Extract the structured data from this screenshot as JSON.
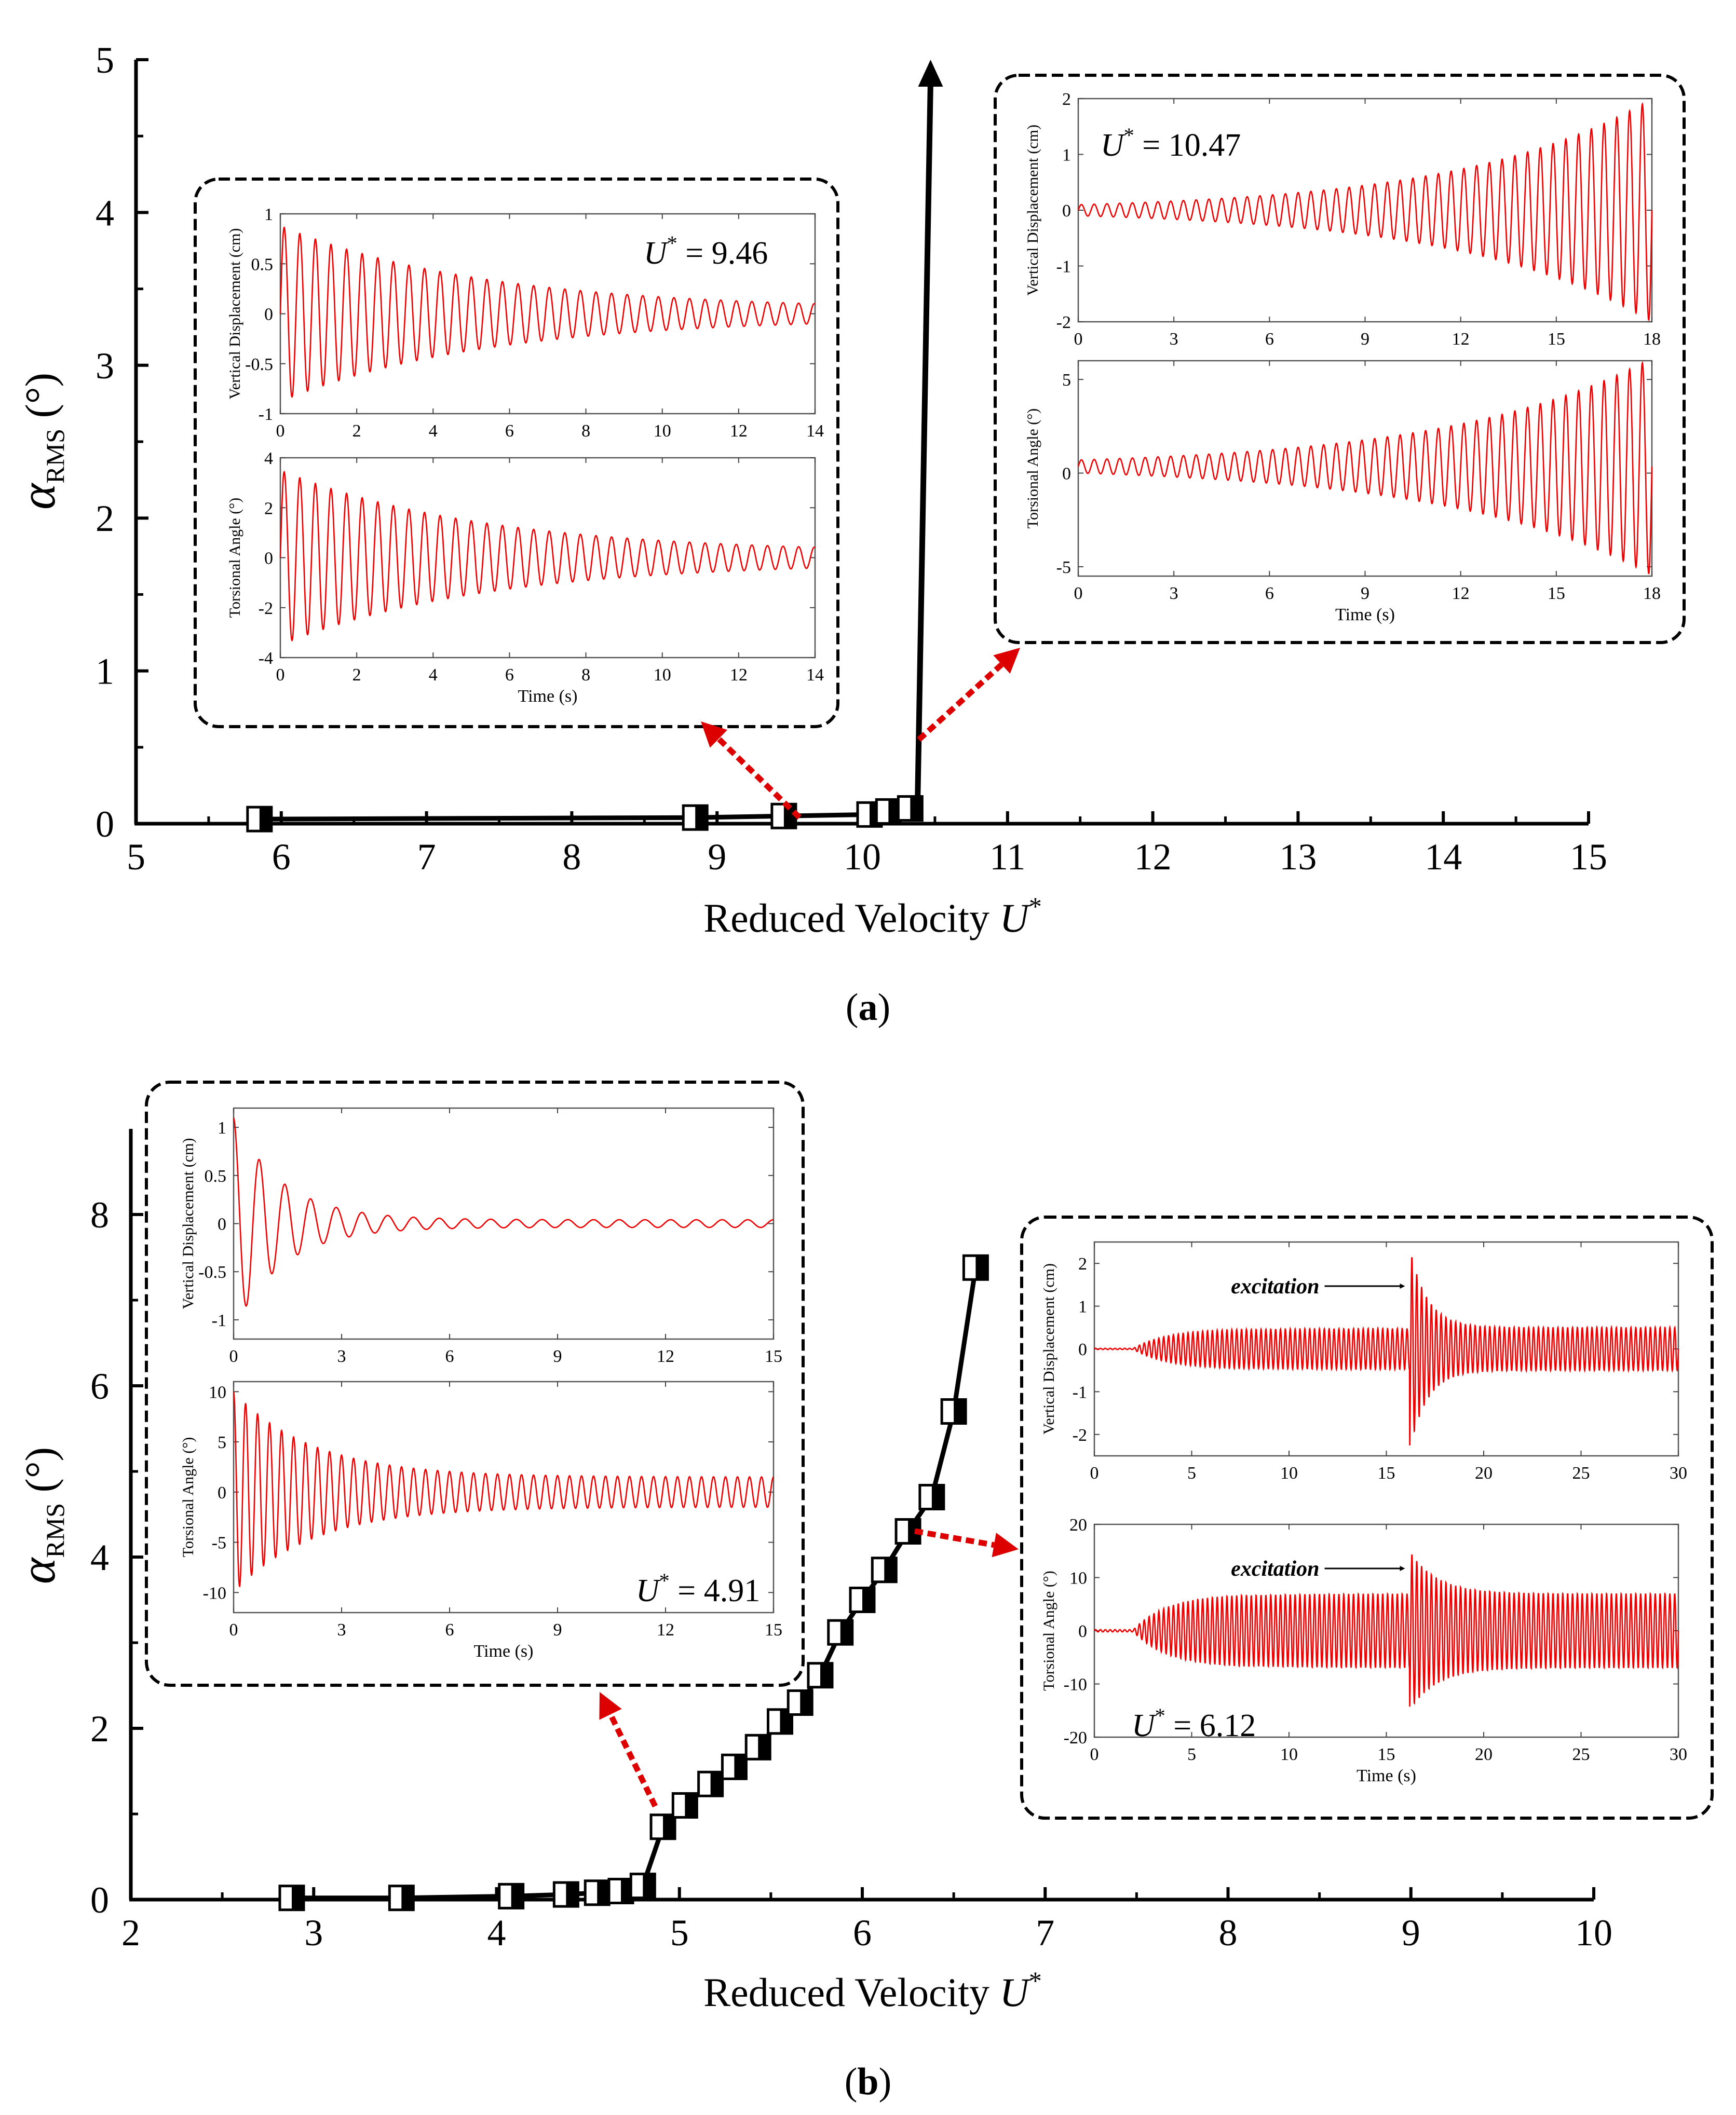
{
  "colors": {
    "axis": "#000000",
    "series": "#000000",
    "signal": "#ee0000",
    "arrow": "#dd0000",
    "box": "#000000"
  },
  "panels": [
    {
      "label": "(a)",
      "ylabel": "αRMS (°)",
      "ylabel_main": "α",
      "ylabel_sub": "RMS",
      "ylabel_unit": "(°)",
      "xlabel": "Reduced Velocity U*",
      "xlabel_main": "Reduced Velocity ",
      "xlabel_var": "U",
      "xlabel_sup": "*",
      "xlim": [
        5,
        15
      ],
      "ylim": [
        0,
        5
      ],
      "xticks": [
        "5",
        "6",
        "7",
        "8",
        "9",
        "10",
        "11",
        "12",
        "13",
        "14",
        "15"
      ],
      "yticks": [
        "0",
        "1",
        "2",
        "3",
        "4",
        "5"
      ],
      "points": [
        {
          "x": 5.85,
          "y": 0.03
        },
        {
          "x": 8.85,
          "y": 0.04
        },
        {
          "x": 9.46,
          "y": 0.05
        },
        {
          "x": 10.05,
          "y": 0.06
        },
        {
          "x": 10.18,
          "y": 0.08
        },
        {
          "x": 10.33,
          "y": 0.1
        }
      ],
      "divergence_arrow": {
        "from": [
          10.38,
          0.1
        ],
        "to": [
          10.47,
          5.0
        ]
      },
      "insets": [
        {
          "u_label": "U* = 9.46",
          "u_var": "U",
          "u_sup": "*",
          "u_value": " = 9.46",
          "xlabel": "Time (s)",
          "top": {
            "ylabel": "Vertical Displacement (cm)",
            "xlim": [
              0,
              14
            ],
            "ylim": [
              -1,
              1
            ],
            "xticks": [
              "0",
              "2",
              "4",
              "6",
              "8",
              "10",
              "12",
              "14"
            ],
            "yticks": [
              "-1",
              "-0.5",
              "0",
              "0.5",
              "1"
            ],
            "signal": {
              "mode": "decay",
              "a0": 0.88,
              "a1": 0.04,
              "offset": 0,
              "freq": 2.45
            }
          },
          "bottom": {
            "ylabel": "Torsional Angle (°)",
            "xlim": [
              0,
              14
            ],
            "ylim": [
              -4,
              4
            ],
            "xticks": [
              "0",
              "2",
              "4",
              "6",
              "8",
              "10",
              "12",
              "14"
            ],
            "yticks": [
              "-4",
              "-2",
              "0",
              "2",
              "4"
            ],
            "signal": {
              "mode": "decay",
              "a0": 3.5,
              "a1": 0.18,
              "offset": 0,
              "freq": 2.45
            }
          }
        },
        {
          "u_label": "U* = 10.47",
          "u_var": "U",
          "u_sup": "*",
          "u_value": " = 10.47",
          "xlabel": "Time (s)",
          "top": {
            "ylabel": "Vertical Displacement (cm)",
            "xlim": [
              0,
              18
            ],
            "ylim": [
              -2,
              2
            ],
            "xticks": [
              "0",
              "3",
              "6",
              "9",
              "12",
              "15",
              "18"
            ],
            "yticks": [
              "-2",
              "-1",
              "0",
              "1",
              "2"
            ],
            "signal": {
              "mode": "grow",
              "a0": 0.1,
              "a1": 2.0,
              "offset": 0,
              "freq": 2.5
            }
          },
          "bottom": {
            "ylabel": "Torsional Angle (°)",
            "xlim": [
              0,
              18
            ],
            "ylim": [
              -5.5,
              6
            ],
            "xticks": [
              "0",
              "3",
              "6",
              "9",
              "12",
              "15",
              "18"
            ],
            "yticks": [
              "-5",
              "0",
              "5"
            ],
            "signal": {
              "mode": "grow",
              "a0": 0.35,
              "a1": 5.8,
              "offset": 0.35,
              "freq": 2.5
            }
          }
        }
      ]
    },
    {
      "label": "(b)",
      "ylabel": "αRMS (°)",
      "ylabel_main": "α",
      "ylabel_sub": "RMS",
      "ylabel_unit": "(°)",
      "xlabel": "Reduced Velocity U*",
      "xlabel_main": "Reduced Velocity ",
      "xlabel_var": "U",
      "xlabel_sup": "*",
      "xlim": [
        2,
        10
      ],
      "ylim": [
        0,
        9
      ],
      "xticks": [
        "2",
        "3",
        "4",
        "5",
        "6",
        "7",
        "8",
        "9",
        "10"
      ],
      "yticks": [
        "0",
        "2",
        "4",
        "6",
        "8"
      ],
      "points": [
        {
          "x": 2.88,
          "y": 0.02
        },
        {
          "x": 3.48,
          "y": 0.02
        },
        {
          "x": 4.08,
          "y": 0.04
        },
        {
          "x": 4.38,
          "y": 0.06
        },
        {
          "x": 4.55,
          "y": 0.08
        },
        {
          "x": 4.68,
          "y": 0.1
        },
        {
          "x": 4.8,
          "y": 0.16
        },
        {
          "x": 4.91,
          "y": 0.85
        },
        {
          "x": 5.03,
          "y": 1.1
        },
        {
          "x": 5.17,
          "y": 1.35
        },
        {
          "x": 5.3,
          "y": 1.55
        },
        {
          "x": 5.43,
          "y": 1.78
        },
        {
          "x": 5.55,
          "y": 2.08
        },
        {
          "x": 5.66,
          "y": 2.3
        },
        {
          "x": 5.77,
          "y": 2.62
        },
        {
          "x": 5.88,
          "y": 3.12
        },
        {
          "x": 6.0,
          "y": 3.5
        },
        {
          "x": 6.12,
          "y": 3.85
        },
        {
          "x": 6.25,
          "y": 4.3
        },
        {
          "x": 6.38,
          "y": 4.7
        },
        {
          "x": 6.5,
          "y": 5.7
        },
        {
          "x": 6.62,
          "y": 7.38
        }
      ],
      "insets": [
        {
          "u_label": "U* = 4.91",
          "u_var": "U",
          "u_sup": "*",
          "u_value": " = 4.91",
          "xlabel": "Time (s)",
          "top": {
            "ylabel": "Vertical Displacement (cm)",
            "xlim": [
              0,
              15
            ],
            "ylim": [
              -1.2,
              1.2
            ],
            "xticks": [
              "0",
              "3",
              "6",
              "9",
              "12",
              "15"
            ],
            "yticks": [
              "-1",
              "-0.5",
              "0",
              "0.5",
              "1"
            ],
            "signal": {
              "mode": "fastdecay",
              "a0": 1.1,
              "a1": 0.04,
              "offset": 0,
              "freq": 2.4
            }
          },
          "bottom": {
            "ylabel": "Torsional Angle (°)",
            "xlim": [
              0,
              15
            ],
            "ylim": [
              -12,
              11
            ],
            "xticks": [
              "0",
              "3",
              "6",
              "9",
              "12",
              "15"
            ],
            "yticks": [
              "-10",
              "-5",
              "0",
              "5",
              "10"
            ],
            "signal": {
              "mode": "decay2",
              "a0": 10,
              "a1": 1.5,
              "offset": 0,
              "freq": 3.0
            }
          }
        },
        {
          "u_label": "U* = 6.12",
          "u_var": "U",
          "u_sup": "*",
          "u_value": " = 6.12",
          "xlabel": "Time (s)",
          "annotation": "excitation",
          "annotation_t": 16.2,
          "top": {
            "ylabel": "Vertical Displacement (cm)",
            "xlim": [
              0,
              30
            ],
            "ylim": [
              -2.5,
              2.5
            ],
            "xticks": [
              "0",
              "5",
              "10",
              "15",
              "20",
              "25",
              "30"
            ],
            "yticks": [
              "-2",
              "-1",
              "0",
              "1",
              "2"
            ],
            "signal": {
              "mode": "excite",
              "a0": 0.48,
              "a1": 2.35,
              "offset": 0,
              "freq": 4.0
            }
          },
          "bottom": {
            "ylabel": "Torsional Angle (°)",
            "xlim": [
              0,
              30
            ],
            "ylim": [
              -20,
              20
            ],
            "xticks": [
              "0",
              "5",
              "10",
              "15",
              "20",
              "25",
              "30"
            ],
            "yticks": [
              "-20",
              "-10",
              "0",
              "10",
              "20"
            ],
            "signal": {
              "mode": "excite",
              "a0": 7.0,
              "a1": 15.0,
              "offset": 0,
              "freq": 4.0
            }
          }
        }
      ]
    }
  ],
  "chart_data": [
    {
      "type": "line",
      "title": "(a)",
      "xlabel": "Reduced Velocity U*",
      "ylabel": "αRMS (°)",
      "xlim": [
        5,
        15
      ],
      "ylim": [
        0,
        5
      ],
      "series": [
        {
          "name": "αRMS",
          "x": [
            5.85,
            8.85,
            9.46,
            10.05,
            10.18,
            10.33
          ],
          "y": [
            0.03,
            0.04,
            0.05,
            0.06,
            0.08,
            0.1
          ]
        }
      ],
      "annotations": [
        "U* = 9.46",
        "U* = 10.47"
      ]
    },
    {
      "type": "line",
      "title": "(b)",
      "xlabel": "Reduced Velocity U*",
      "ylabel": "αRMS (°)",
      "xlim": [
        2,
        10
      ],
      "ylim": [
        0,
        9
      ],
      "series": [
        {
          "name": "αRMS",
          "x": [
            2.88,
            3.48,
            4.08,
            4.38,
            4.55,
            4.68,
            4.8,
            4.91,
            5.03,
            5.17,
            5.3,
            5.43,
            5.55,
            5.66,
            5.77,
            5.88,
            6.0,
            6.12,
            6.25,
            6.38,
            6.5,
            6.62
          ],
          "y": [
            0.02,
            0.02,
            0.04,
            0.06,
            0.08,
            0.1,
            0.16,
            0.85,
            1.1,
            1.35,
            1.55,
            1.78,
            2.08,
            2.3,
            2.62,
            3.12,
            3.5,
            3.85,
            4.3,
            4.7,
            5.7,
            7.38
          ]
        }
      ],
      "annotations": [
        "U* = 4.91",
        "U* = 6.12",
        "excitation"
      ]
    }
  ]
}
